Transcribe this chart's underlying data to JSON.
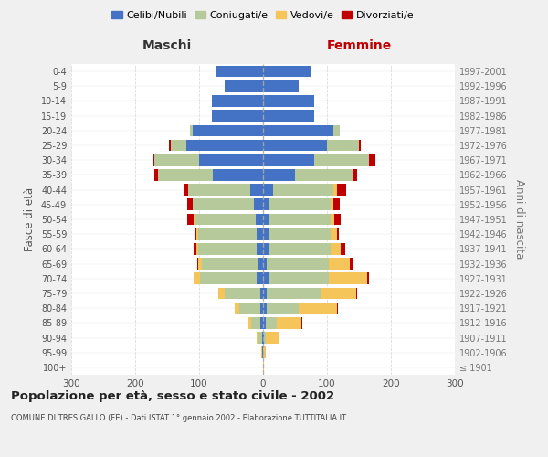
{
  "age_groups": [
    "100+",
    "95-99",
    "90-94",
    "85-89",
    "80-84",
    "75-79",
    "70-74",
    "65-69",
    "60-64",
    "55-59",
    "50-54",
    "45-49",
    "40-44",
    "35-39",
    "30-34",
    "25-29",
    "20-24",
    "15-19",
    "10-14",
    "5-9",
    "0-4"
  ],
  "birth_years": [
    "≤ 1901",
    "1902-1906",
    "1907-1911",
    "1912-1916",
    "1917-1921",
    "1922-1926",
    "1927-1931",
    "1932-1936",
    "1937-1941",
    "1942-1946",
    "1947-1951",
    "1952-1956",
    "1957-1961",
    "1962-1966",
    "1967-1971",
    "1972-1976",
    "1977-1981",
    "1982-1986",
    "1987-1991",
    "1992-1996",
    "1997-2001"
  ],
  "maschi": {
    "celibi": [
      0,
      1,
      2,
      4,
      5,
      5,
      10,
      8,
      10,
      10,
      12,
      15,
      20,
      78,
      100,
      120,
      110,
      80,
      80,
      60,
      75
    ],
    "coniugati": [
      0,
      1,
      5,
      14,
      32,
      55,
      88,
      88,
      92,
      92,
      95,
      95,
      97,
      87,
      70,
      25,
      5,
      0,
      0,
      0,
      0
    ],
    "vedovi": [
      0,
      1,
      3,
      5,
      8,
      10,
      10,
      5,
      3,
      2,
      1,
      0,
      0,
      0,
      0,
      0,
      0,
      0,
      0,
      0,
      0
    ],
    "divorziati": [
      0,
      0,
      0,
      0,
      0,
      0,
      0,
      2,
      4,
      3,
      10,
      8,
      8,
      5,
      2,
      2,
      0,
      0,
      0,
      0,
      0
    ]
  },
  "femmine": {
    "nubili": [
      0,
      0,
      1,
      4,
      5,
      5,
      8,
      5,
      8,
      8,
      8,
      10,
      15,
      50,
      80,
      100,
      110,
      80,
      80,
      55,
      75
    ],
    "coniugate": [
      0,
      0,
      3,
      18,
      50,
      85,
      95,
      98,
      98,
      97,
      98,
      95,
      95,
      90,
      85,
      50,
      10,
      0,
      0,
      0,
      0
    ],
    "vedove": [
      2,
      4,
      22,
      38,
      60,
      55,
      60,
      32,
      15,
      10,
      5,
      5,
      5,
      2,
      0,
      0,
      0,
      0,
      0,
      0,
      0
    ],
    "divorziate": [
      0,
      0,
      0,
      2,
      2,
      2,
      3,
      5,
      8,
      4,
      10,
      10,
      15,
      5,
      10,
      3,
      0,
      0,
      0,
      0,
      0
    ]
  },
  "colors": {
    "celibi_nubili": "#4472c4",
    "coniugati_e": "#b5c99a",
    "vedovi_e": "#f5c55a",
    "divorziati_e": "#c00000"
  },
  "title": "Popolazione per età, sesso e stato civile - 2002",
  "subtitle": "COMUNE DI TRESIGALLO (FE) - Dati ISTAT 1° gennaio 2002 - Elaborazione TUTTITALIA.IT",
  "maschi_label": "Maschi",
  "femmine_label": "Femmine",
  "ylabel_left": "Fasce di età",
  "ylabel_right": "Anni di nascita",
  "xlim": 300,
  "bg_color": "#f0f0f0",
  "plot_bg_color": "#ffffff",
  "legend_labels": [
    "Celibi/Nubili",
    "Coniugati/e",
    "Vedovi/e",
    "Divorziati/e"
  ],
  "grid_color": "#cccccc"
}
